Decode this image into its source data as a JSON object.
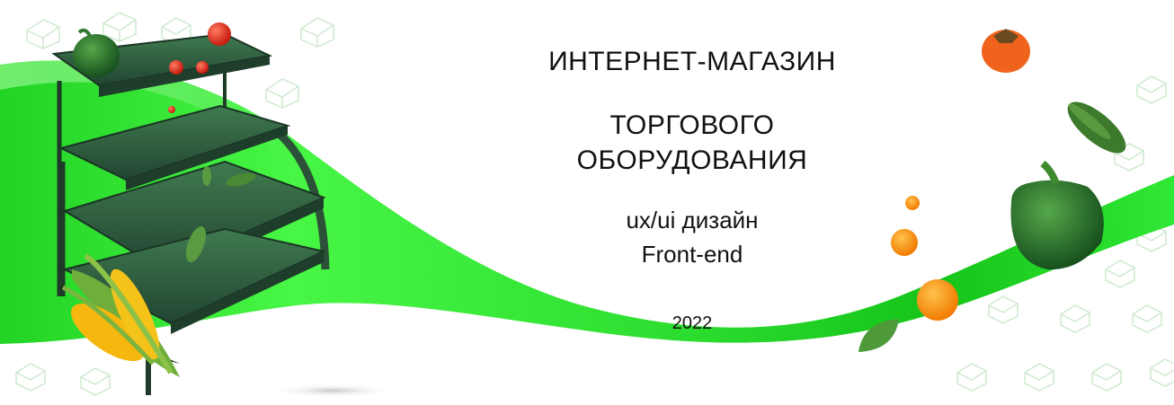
{
  "banner": {
    "title_line1": "ИНТЕРНЕТ-МАГАЗИН",
    "title_line2": "ТОРГОВОГО",
    "title_line3": "ОБОРУДОВАНИЯ",
    "subtitle_line1": "ux/ui дизайн",
    "subtitle_line2": "Front-end",
    "year": "2022"
  },
  "colors": {
    "wave_bright": "#39f03a",
    "wave_dark": "#19c41c",
    "shelf_green": "#2f5a3a",
    "icon_outline": "#cfe9cf"
  }
}
